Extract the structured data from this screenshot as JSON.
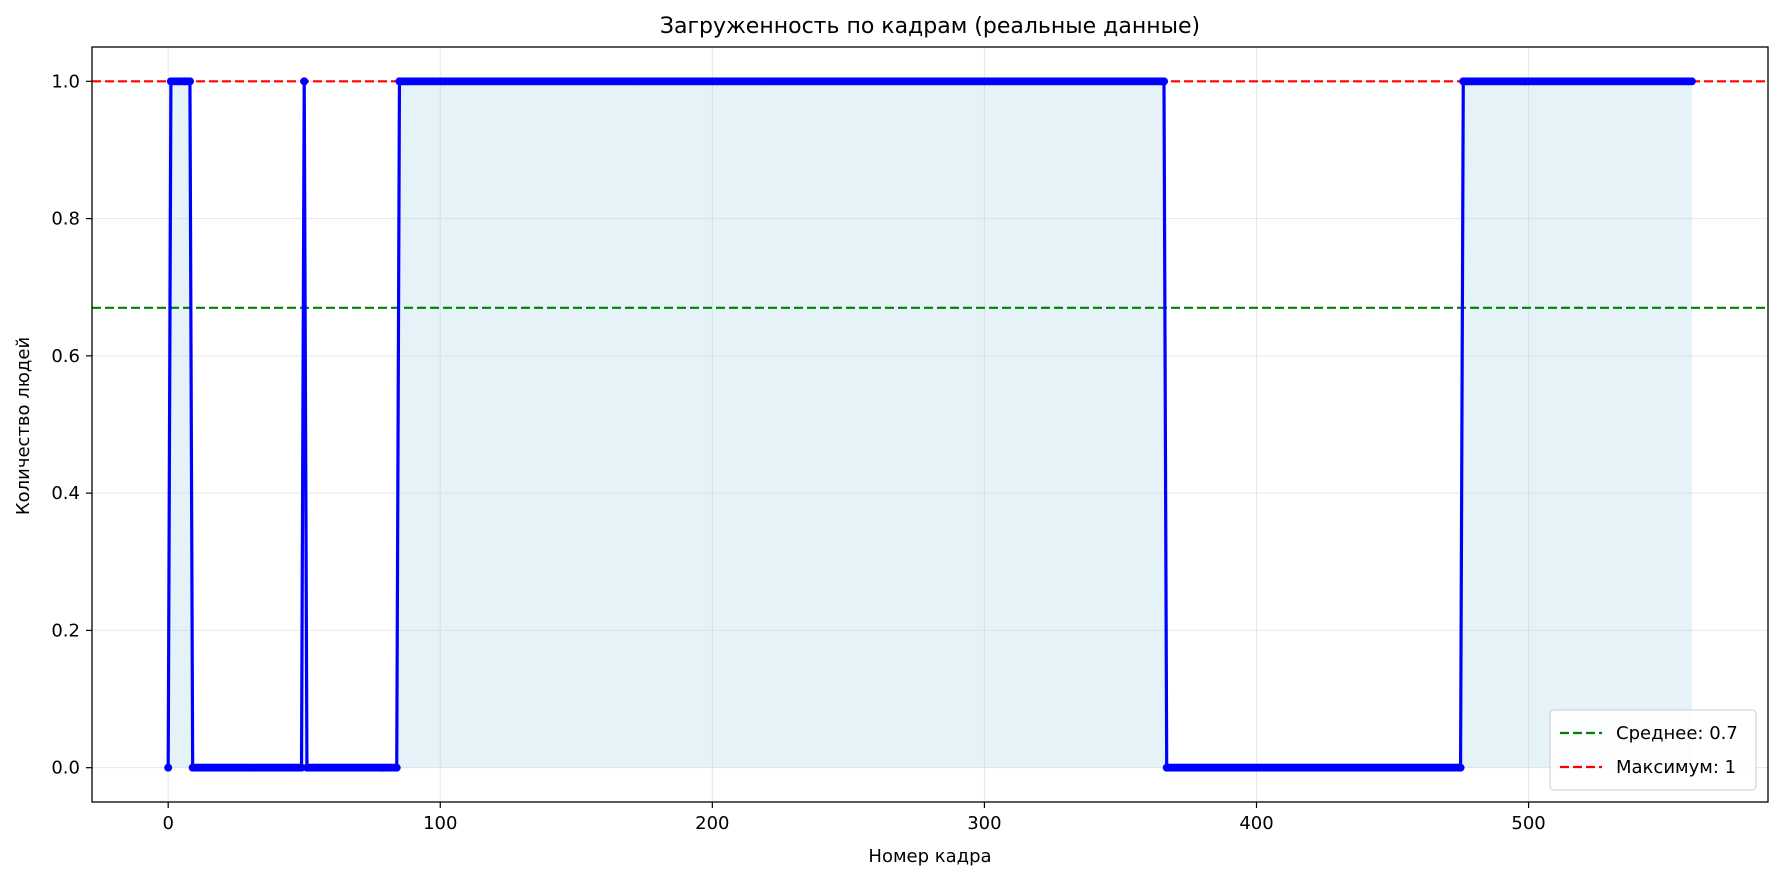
{
  "chart_data": {
    "type": "line",
    "title": "Загруженность по кадрам (реальные данные)",
    "xlabel": "Номер кадра",
    "ylabel": "Количество людей",
    "xlim": [
      -28,
      588
    ],
    "ylim": [
      -0.05,
      1.05
    ],
    "xticks": [
      0,
      100,
      200,
      300,
      400,
      500
    ],
    "xtick_labels": [
      "0",
      "100",
      "200",
      "300",
      "400",
      "500"
    ],
    "yticks": [
      0.0,
      0.2,
      0.4,
      0.6,
      0.8,
      1.0
    ],
    "ytick_labels": [
      "0.0",
      "0.2",
      "0.4",
      "0.6",
      "0.8",
      "1.0"
    ],
    "grid": true,
    "legend_position": "lower-right",
    "series_color": "#0000ff",
    "fill_color": "#add8e6",
    "x_last": 560,
    "segments": [
      {
        "start": 0,
        "end": 0,
        "value": 0
      },
      {
        "start": 1,
        "end": 8,
        "value": 1
      },
      {
        "start": 9,
        "end": 49,
        "value": 0
      },
      {
        "start": 50,
        "end": 50,
        "value": 1
      },
      {
        "start": 51,
        "end": 84,
        "value": 0
      },
      {
        "start": 85,
        "end": 366,
        "value": 1
      },
      {
        "start": 367,
        "end": 475,
        "value": 0
      },
      {
        "start": 476,
        "end": 560,
        "value": 1
      }
    ],
    "reference_lines": [
      {
        "label": "Среднее: 0.7",
        "value": 0.67,
        "color": "#008000"
      },
      {
        "label": "Максимум: 1",
        "value": 1.0,
        "color": "#ff0000"
      }
    ]
  }
}
